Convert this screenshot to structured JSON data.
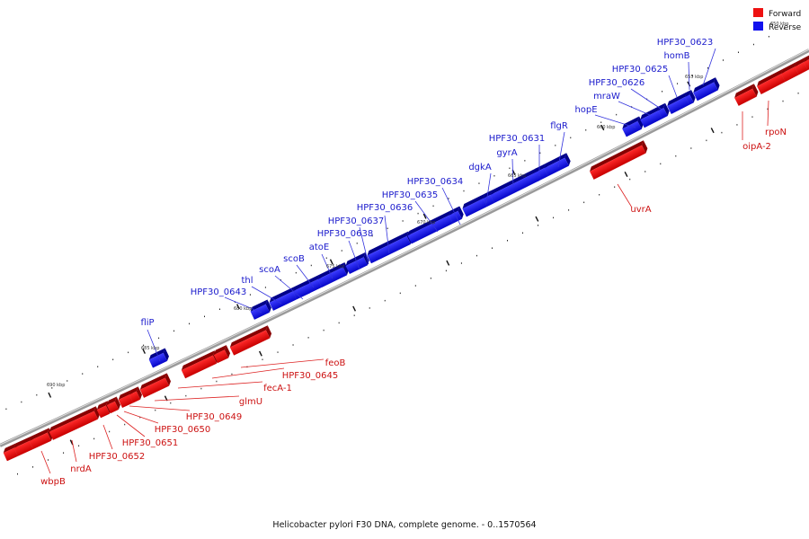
{
  "legend": [
    {
      "label": "Forward",
      "color": "#ee1111"
    },
    {
      "label": "Reverse",
      "color": "#1111ee"
    }
  ],
  "caption": "Helicobacter pylori F30 DNA, complete genome. - 0..1570564",
  "ticks": [
    {
      "label": "690 kbp"
    },
    {
      "label": "685 kbp"
    },
    {
      "label": "680 kbp"
    },
    {
      "label": "675 kbp"
    },
    {
      "label": "670 kbp"
    },
    {
      "label": "665 kbp"
    },
    {
      "label": "660 kbp"
    },
    {
      "label": "655 kbp"
    },
    {
      "label": "650 kbp"
    }
  ],
  "genes_reverse": [
    {
      "name": "fliP"
    },
    {
      "name": "HPF30_0643"
    },
    {
      "name": "thl"
    },
    {
      "name": "scoA"
    },
    {
      "name": "scoB"
    },
    {
      "name": "atoE"
    },
    {
      "name": "HPF30_0638"
    },
    {
      "name": "HPF30_0637"
    },
    {
      "name": "HPF30_0636"
    },
    {
      "name": "HPF30_0635"
    },
    {
      "name": "HPF30_0634"
    },
    {
      "name": "dgkA"
    },
    {
      "name": "gyrA"
    },
    {
      "name": "HPF30_0631"
    },
    {
      "name": "flgR"
    },
    {
      "name": "hopE"
    },
    {
      "name": "mraW"
    },
    {
      "name": "HPF30_0626"
    },
    {
      "name": "HPF30_0625"
    },
    {
      "name": "homB"
    },
    {
      "name": "HPF30_0623"
    }
  ],
  "genes_forward": [
    {
      "name": "wbpB"
    },
    {
      "name": "nrdA"
    },
    {
      "name": "HPF30_0652"
    },
    {
      "name": "HPF30_0651"
    },
    {
      "name": "HPF30_0650"
    },
    {
      "name": "HPF30_0649"
    },
    {
      "name": "glmU"
    },
    {
      "name": "fecA-1"
    },
    {
      "name": "HPF30_0645"
    },
    {
      "name": "feoB"
    },
    {
      "name": "uvrA"
    },
    {
      "name": "oipA-2"
    },
    {
      "name": "rpoN"
    }
  ]
}
